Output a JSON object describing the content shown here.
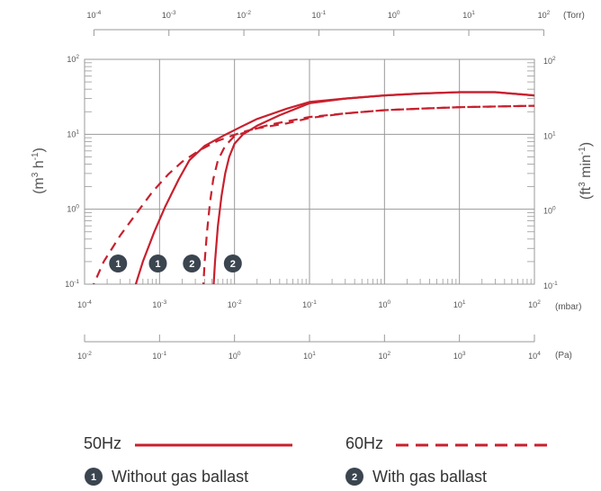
{
  "chart_data": {
    "type": "line",
    "x_scale": "log",
    "y_scale": "log",
    "grid": true,
    "xlim_mbar": [
      0.0001,
      100
    ],
    "ylim_m3h": [
      0.1,
      100
    ],
    "axes": {
      "top": {
        "unit": "(Torr)",
        "ticks": [
          "10-4",
          "10-3",
          "10-2",
          "10-1",
          "100",
          "101",
          "102"
        ]
      },
      "bottom_mbar": {
        "unit": "(mbar)",
        "ticks": [
          "10-4",
          "10-3",
          "10-2",
          "10-1",
          "100",
          "101",
          "102"
        ]
      },
      "bottom_pa": {
        "unit": "(Pa)",
        "ticks": [
          "10-2",
          "10-1",
          "100",
          "101",
          "102",
          "103",
          "104"
        ]
      },
      "left": {
        "title": "(m3 h-1)",
        "ticks": [
          "10-1",
          "100",
          "101",
          "102"
        ]
      },
      "right": {
        "title": "(ft3 min-1)",
        "ticks": [
          "10-1",
          "100",
          "101",
          "102"
        ]
      }
    },
    "series": [
      {
        "name": "50Hz, without gas ballast",
        "line": "solid",
        "x": [
          0.00045,
          0.0006,
          0.00085,
          0.0012,
          0.0018,
          0.0025,
          0.004,
          0.007,
          0.012,
          0.02,
          0.05,
          0.1,
          0.3,
          1,
          3,
          10,
          30,
          100
        ],
        "y": [
          0.08,
          0.2,
          0.5,
          1.1,
          2.5,
          4.5,
          7,
          9.5,
          12.5,
          16,
          22,
          27,
          30,
          33,
          35,
          36.5,
          36.5,
          33
        ]
      },
      {
        "name": "50Hz, with gas ballast",
        "line": "solid",
        "x": [
          0.0052,
          0.0055,
          0.006,
          0.0067,
          0.0075,
          0.0085,
          0.01,
          0.013,
          0.02,
          0.04,
          0.1,
          0.3,
          1,
          3,
          10,
          30,
          100
        ],
        "y": [
          0.08,
          0.2,
          0.6,
          1.5,
          3,
          5,
          7.5,
          10,
          13,
          18,
          26,
          30,
          33,
          35,
          36.5,
          36.5,
          33
        ]
      },
      {
        "name": "60Hz, without gas ballast",
        "line": "dashed",
        "x": [
          0.00012,
          0.00018,
          0.0003,
          0.0005,
          0.0008,
          0.0013,
          0.002,
          0.0035,
          0.006,
          0.012,
          0.03,
          0.1,
          0.3,
          1,
          3,
          10,
          100
        ],
        "y": [
          0.08,
          0.2,
          0.45,
          0.9,
          1.7,
          2.9,
          4.3,
          6.2,
          8.2,
          10.5,
          13.5,
          17,
          19,
          21,
          22,
          23,
          24
        ]
      },
      {
        "name": "60Hz, with gas ballast",
        "line": "dashed",
        "x": [
          0.0038,
          0.004,
          0.0043,
          0.0047,
          0.0052,
          0.006,
          0.0075,
          0.01,
          0.02,
          0.05,
          0.1,
          0.3,
          1,
          3,
          10,
          100
        ],
        "y": [
          0.08,
          0.2,
          0.5,
          1.2,
          2.5,
          4.5,
          7,
          9.5,
          12,
          14,
          16.5,
          19,
          21,
          22,
          23,
          24
        ]
      }
    ],
    "markers": [
      {
        "label": "1",
        "meaning": "Without gas ballast",
        "x": 0.00028
      },
      {
        "label": "1",
        "meaning": "Without gas ballast",
        "x": 0.00095
      },
      {
        "label": "2",
        "meaning": "With gas ballast",
        "x": 0.0027
      },
      {
        "label": "2",
        "meaning": "With gas ballast",
        "x": 0.0095
      }
    ]
  },
  "legend": {
    "hz50_label": "50Hz",
    "hz60_label": "60Hz",
    "note1_num": "1",
    "note1_text": "Without gas ballast",
    "note2_num": "2",
    "note2_text": "With gas ballast"
  },
  "colors": {
    "curve": "#c8202e",
    "grid": "#9a9a9a",
    "marker": "#3b4550",
    "text": "#555555"
  }
}
